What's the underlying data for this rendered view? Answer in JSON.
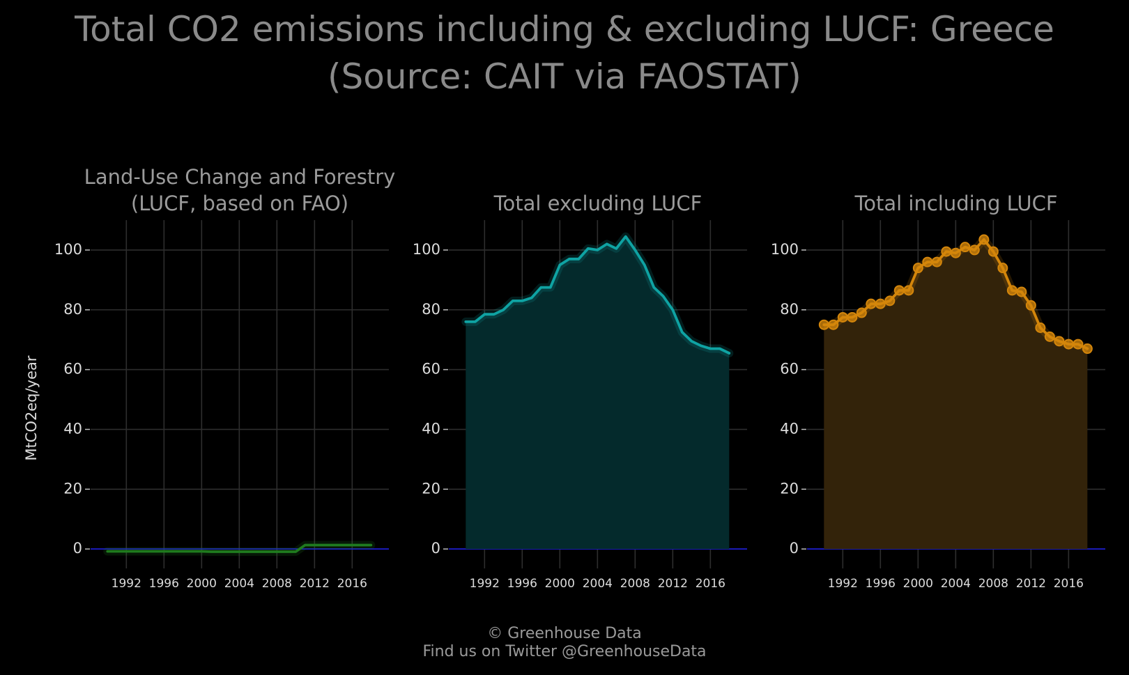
{
  "title_line1": "Total CO2 emissions including & excluding LUCF: Greece",
  "title_line2": "(Source: CAIT via FAOSTAT)",
  "footer_line1": "© Greenhouse Data",
  "footer_line2": "Find us on Twitter @GreenhouseData",
  "chart_data": [
    {
      "type": "line",
      "title_lines": [
        "Land-Use Change and Forestry",
        "(LUCF, based on FAO)"
      ],
      "ylabel": "MtCO2eq/year",
      "xlim": [
        1988.2,
        2019.9
      ],
      "ylim": [
        -6.5,
        110
      ],
      "yticks": [
        0,
        20,
        40,
        60,
        80,
        100
      ],
      "xticks": [
        1992,
        1996,
        2000,
        2004,
        2008,
        2012,
        2016
      ],
      "color": "#1f7a1f",
      "fill": false,
      "markers": false,
      "x": [
        1990,
        1991,
        1992,
        1993,
        1994,
        1995,
        1996,
        1997,
        1998,
        1999,
        2000,
        2001,
        2002,
        2003,
        2004,
        2005,
        2006,
        2007,
        2008,
        2009,
        2010,
        2011,
        2012,
        2013,
        2014,
        2015,
        2016,
        2017,
        2018
      ],
      "y": [
        -0.8,
        -0.8,
        -0.8,
        -0.8,
        -0.8,
        -0.8,
        -0.8,
        -0.8,
        -0.8,
        -0.8,
        -0.8,
        -0.9,
        -0.9,
        -0.9,
        -0.9,
        -0.9,
        -0.9,
        -0.9,
        -0.9,
        -0.9,
        -0.9,
        1.3,
        1.3,
        1.3,
        1.3,
        1.3,
        1.3,
        1.3,
        1.3
      ]
    },
    {
      "type": "area",
      "title_lines": [
        "Total excluding LUCF"
      ],
      "ylabel": "",
      "xlim": [
        1988.2,
        2019.9
      ],
      "ylim": [
        -6.5,
        110
      ],
      "yticks": [
        0,
        20,
        40,
        60,
        80,
        100
      ],
      "xticks": [
        1992,
        1996,
        2000,
        2004,
        2008,
        2012,
        2016
      ],
      "color": "#0fa3a3",
      "fill": true,
      "fill_color": "#042a2c",
      "markers": false,
      "x": [
        1990,
        1991,
        1992,
        1993,
        1994,
        1995,
        1996,
        1997,
        1998,
        1999,
        2000,
        2001,
        2002,
        2003,
        2004,
        2005,
        2006,
        2007,
        2008,
        2009,
        2010,
        2011,
        2012,
        2013,
        2014,
        2015,
        2016,
        2017,
        2018
      ],
      "y": [
        76,
        76,
        78.5,
        78.5,
        80,
        83,
        83,
        84,
        87.5,
        87.5,
        95,
        97,
        97,
        100.5,
        100,
        102,
        100.5,
        104.5,
        100,
        95,
        87.5,
        84.5,
        80,
        72.5,
        69.5,
        68,
        67,
        67,
        65.5
      ]
    },
    {
      "type": "area",
      "title_lines": [
        "Total including LUCF"
      ],
      "ylabel": "",
      "xlim": [
        1988.2,
        2019.9
      ],
      "ylim": [
        -6.5,
        110
      ],
      "yticks": [
        0,
        20,
        40,
        60,
        80,
        100
      ],
      "xticks": [
        1992,
        1996,
        2000,
        2004,
        2008,
        2012,
        2016
      ],
      "color": "#d4860b",
      "fill": true,
      "fill_color": "#33230a",
      "markers": true,
      "x": [
        1990,
        1991,
        1992,
        1993,
        1994,
        1995,
        1996,
        1997,
        1998,
        1999,
        2000,
        2001,
        2002,
        2003,
        2004,
        2005,
        2006,
        2007,
        2008,
        2009,
        2010,
        2011,
        2012,
        2013,
        2014,
        2015,
        2016,
        2017,
        2018
      ],
      "y": [
        75,
        75,
        77.5,
        77.5,
        79,
        82,
        82,
        83,
        86.5,
        86.5,
        94,
        96,
        96,
        99.5,
        99,
        101,
        100,
        103.5,
        99.5,
        94,
        86.5,
        86,
        81.5,
        74,
        71,
        69.5,
        68.5,
        68.5,
        67
      ]
    }
  ]
}
